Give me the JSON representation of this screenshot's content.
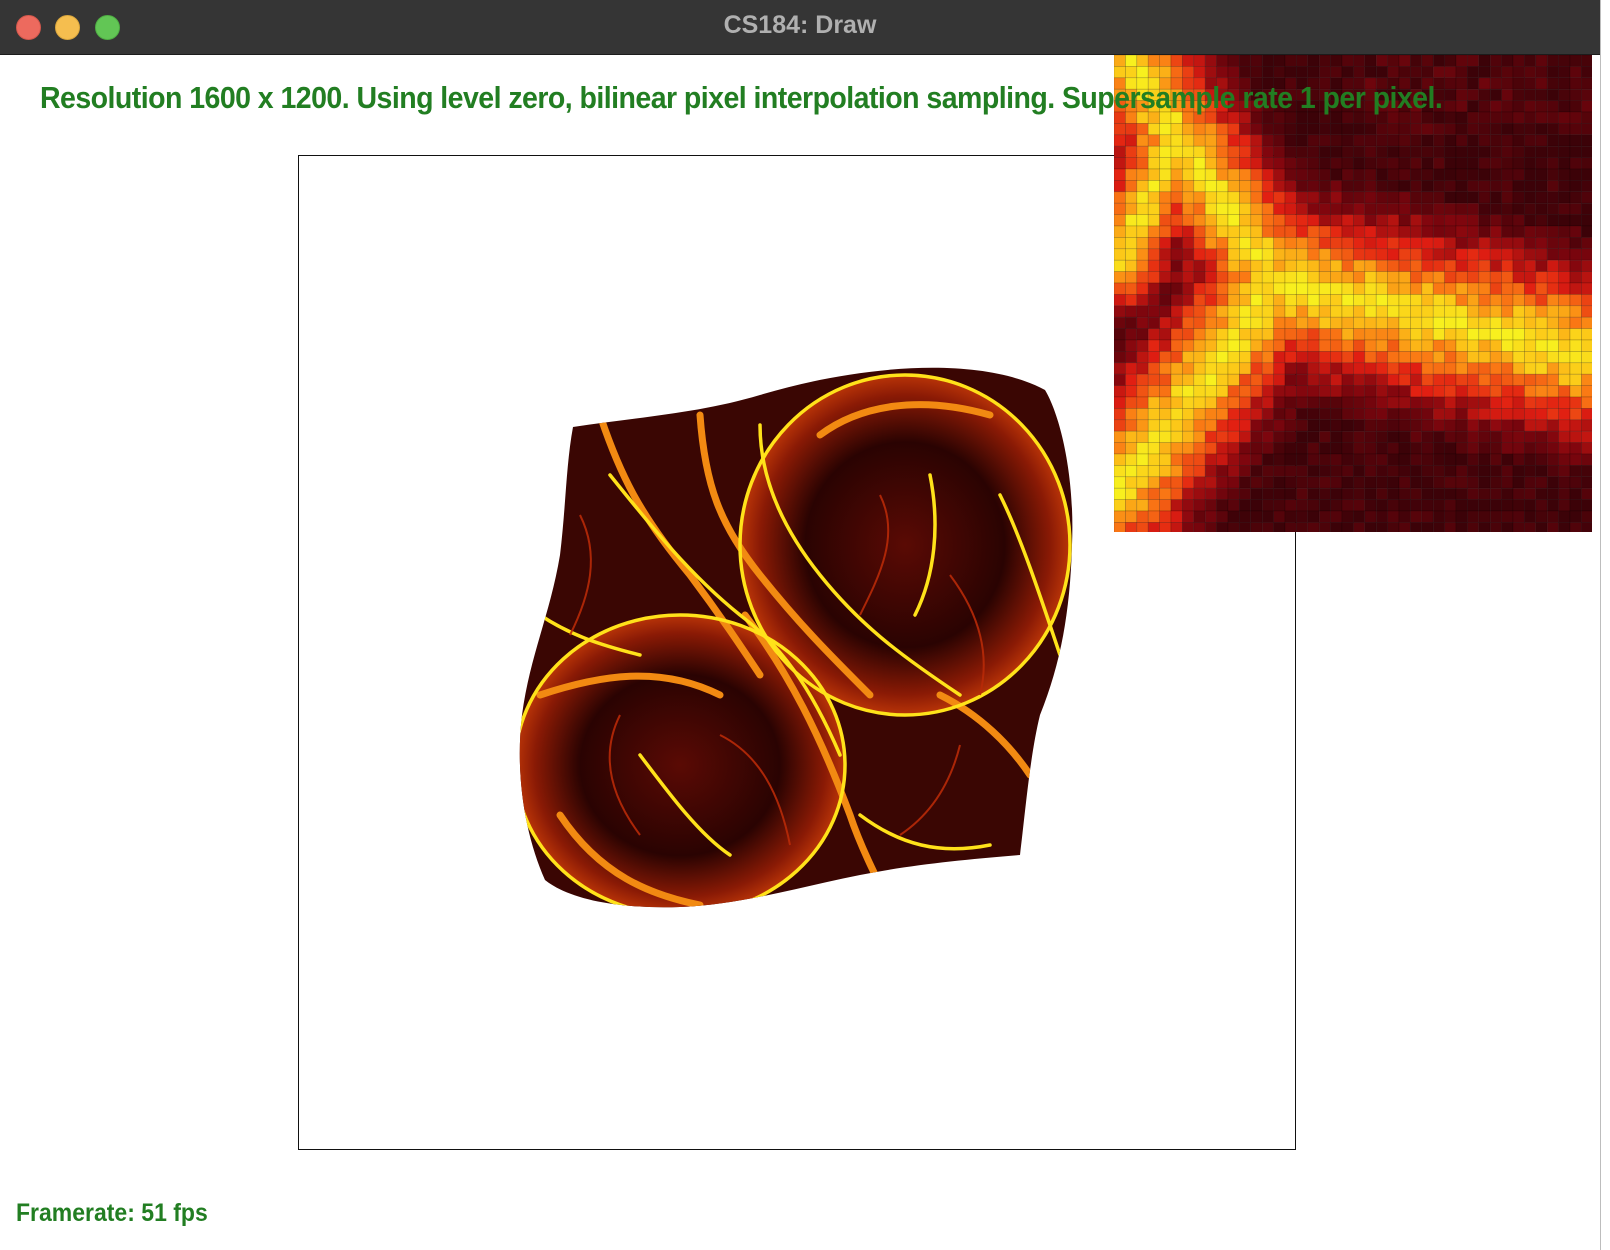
{
  "window": {
    "title": "CS184: Draw"
  },
  "hud": {
    "status_text": "Resolution 1600 x 1200. Using level zero, bilinear pixel interpolation sampling. Supersample rate 1 per pixel.",
    "framerate_text": "Framerate: 51 fps"
  },
  "colors": {
    "hud_text": "#227e22",
    "titlebar": "#353535",
    "close": "#ed6a5e",
    "minimize": "#f5be4f",
    "maximize": "#62c655"
  },
  "icons": {
    "close": "close-traffic-light-icon",
    "minimize": "minimize-traffic-light-icon",
    "maximize": "maximize-traffic-light-icon"
  }
}
